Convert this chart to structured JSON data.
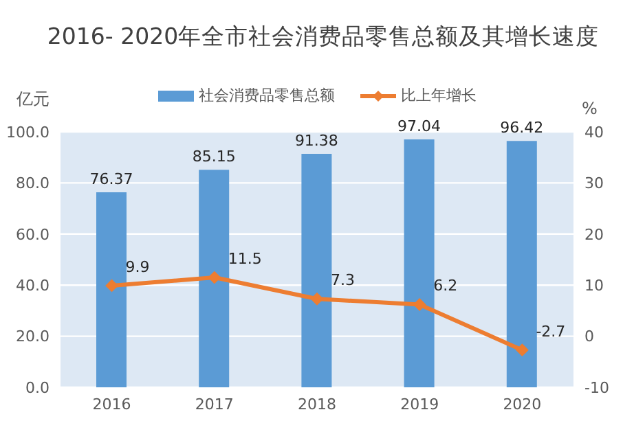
{
  "chart_data": {
    "type": "bar",
    "title": "2016- 2020年全市社会消费品零售总额及其增长速度",
    "ylabel": "亿元",
    "y2label": "%",
    "categories": [
      "2016",
      "2017",
      "2018",
      "2019",
      "2020"
    ],
    "series": [
      {
        "name": "社会消费品零售总额",
        "color": "#5b9bd5",
        "values": [
          76.37,
          85.15,
          91.38,
          97.04,
          96.42
        ]
      },
      {
        "name": "比上年增长",
        "type": "line",
        "axis": "y2",
        "color": "#ed7d31",
        "values": [
          9.9,
          11.5,
          7.3,
          6.2,
          -2.7
        ]
      }
    ],
    "ylim": [
      0,
      100
    ],
    "yticks": [
      {
        "value": 0,
        "label": "0.0"
      },
      {
        "value": 20,
        "label": "20.0"
      },
      {
        "value": 40,
        "label": "40.0"
      },
      {
        "value": 60,
        "label": "60.0"
      },
      {
        "value": 80,
        "label": "80.0"
      },
      {
        "value": 100,
        "label": "100.0"
      }
    ],
    "y2lim": [
      -10,
      40
    ],
    "y2ticks": [
      -10,
      0,
      10,
      20,
      30,
      40
    ],
    "grid": "y",
    "legend": "top",
    "marker": "diamond",
    "line_style": "solid",
    "data_labels": true
  }
}
